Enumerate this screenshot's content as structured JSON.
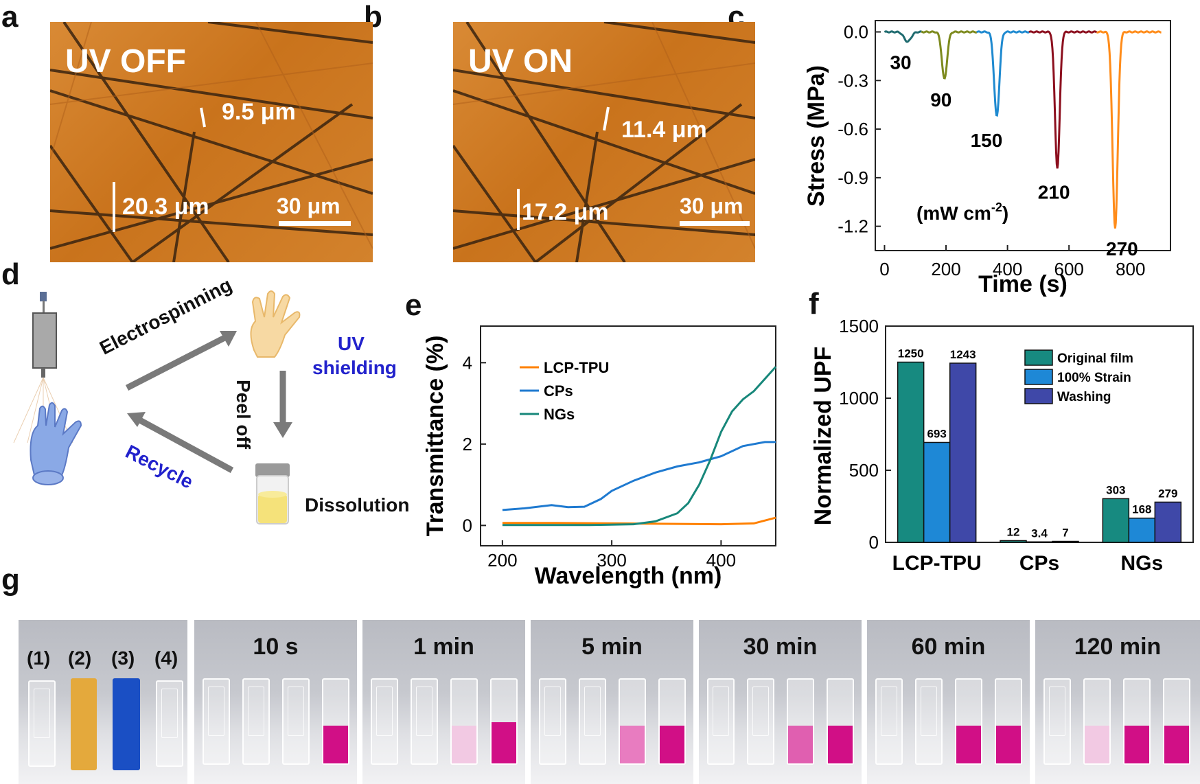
{
  "panels": {
    "a": "a",
    "b": "b",
    "c": "c",
    "d": "d",
    "e": "e",
    "f": "f",
    "g": "g"
  },
  "panel_a": {
    "title": "UV OFF",
    "measure_top": "9.5 μm",
    "measure_bottom": "20.3 μm",
    "scale": "30 μm"
  },
  "panel_b": {
    "title": "UV ON",
    "measure_top": "11.4 μm",
    "measure_bottom": "17.2 μm",
    "scale": "30 μm"
  },
  "panel_d": {
    "electrospinning": "Electrospinning",
    "uv": "UV",
    "shielding": "shielding",
    "peel_off": "Peel off",
    "dissolution": "Dissolution",
    "recycle": "Recycle"
  },
  "panel_g": {
    "labels": [
      "(1)",
      "(2)",
      "(3)",
      "(4)"
    ],
    "times": [
      "10 s",
      "1 min",
      "5 min",
      "30 min",
      "60 min",
      "120 min"
    ],
    "colors": {
      "yellow": "#e4a93c",
      "blue": "#1a4fc4",
      "magenta": "#d10f86",
      "pink": "#e87cc0",
      "light_pink": "#f2c9e3"
    }
  },
  "chart_data": [
    {
      "id": "c",
      "type": "line",
      "xlabel": "Time (s)",
      "ylabel": "Stress (MPa)",
      "xlim": [
        -30,
        930
      ],
      "ylim": [
        -1.35,
        0.07
      ],
      "xticks": [
        "0",
        "200",
        "400",
        "600",
        "800"
      ],
      "yticks": [
        "0.0",
        "-0.3",
        "-0.6",
        "-0.9",
        "-1.2"
      ],
      "unit_label": "(mW cm",
      "unit_sup": "-2",
      "unit_close": ")",
      "series": [
        {
          "name": "30",
          "color": "#1f6b6f",
          "x_range": [
            0,
            120
          ],
          "peak_x": 75,
          "peak_y": -0.06,
          "width": 16,
          "label": "30"
        },
        {
          "name": "90",
          "color": "#7d8a1e",
          "x_range": [
            120,
            300
          ],
          "peak_x": 195,
          "peak_y": -0.29,
          "width": 12,
          "label": "90"
        },
        {
          "name": "150",
          "color": "#1f8ad0",
          "x_range": [
            300,
            470
          ],
          "peak_x": 365,
          "peak_y": -0.52,
          "width": 12,
          "label": "150"
        },
        {
          "name": "210",
          "color": "#8c0f1e",
          "x_range": [
            470,
            690
          ],
          "peak_x": 562,
          "peak_y": -0.84,
          "width": 11,
          "label": "210"
        },
        {
          "name": "270",
          "color": "#ff8c1a",
          "x_range": [
            690,
            900
          ],
          "peak_x": 750,
          "peak_y": -1.21,
          "width": 12,
          "label": "270"
        }
      ]
    },
    {
      "id": "e",
      "type": "line",
      "xlabel": "Wavelength (nm)",
      "ylabel": "Transmittance (%)",
      "xlim": [
        180,
        450
      ],
      "ylim": [
        -0.5,
        4.9
      ],
      "xticks": [
        "200",
        "300",
        "400"
      ],
      "yticks": [
        "0",
        "2",
        "4"
      ],
      "series": [
        {
          "name": "LCP-TPU",
          "color": "#ff8000",
          "x": [
            200,
            250,
            300,
            350,
            400,
            430,
            450
          ],
          "y": [
            0.06,
            0.06,
            0.05,
            0.04,
            0.03,
            0.05,
            0.19
          ]
        },
        {
          "name": "CPs",
          "color": "#1f7ad0",
          "x": [
            200,
            220,
            245,
            260,
            275,
            290,
            300,
            320,
            340,
            360,
            380,
            400,
            420,
            440,
            450
          ],
          "y": [
            0.38,
            0.42,
            0.5,
            0.45,
            0.46,
            0.65,
            0.85,
            1.1,
            1.3,
            1.45,
            1.55,
            1.7,
            1.95,
            2.05,
            2.05
          ]
        },
        {
          "name": "NGs",
          "color": "#17877a",
          "x": [
            200,
            280,
            320,
            340,
            360,
            370,
            380,
            390,
            400,
            410,
            420,
            430,
            440,
            450
          ],
          "y": [
            0.01,
            0.01,
            0.03,
            0.1,
            0.3,
            0.55,
            1.0,
            1.6,
            2.3,
            2.8,
            3.1,
            3.3,
            3.6,
            3.9
          ]
        }
      ]
    },
    {
      "id": "f",
      "type": "bar",
      "ylabel": "Normalized UPF",
      "categories": [
        "LCP-TPU",
        "CPs",
        "NGs"
      ],
      "ylim": [
        0,
        1500
      ],
      "yticks": [
        "0",
        "500",
        "1000",
        "1500"
      ],
      "series": [
        {
          "name": "Original film",
          "color": "#178a80",
          "values": [
            1250,
            12,
            303
          ],
          "labels": [
            "1250",
            "12",
            "303"
          ]
        },
        {
          "name": "100% Strain",
          "color": "#1e88d6",
          "values": [
            693,
            3.4,
            168
          ],
          "labels": [
            "693",
            "3.4",
            "168"
          ]
        },
        {
          "name": "Washing",
          "color": "#3f48a8",
          "values": [
            1243,
            7,
            279
          ],
          "labels": [
            "1243",
            "7",
            "279"
          ]
        }
      ]
    }
  ]
}
